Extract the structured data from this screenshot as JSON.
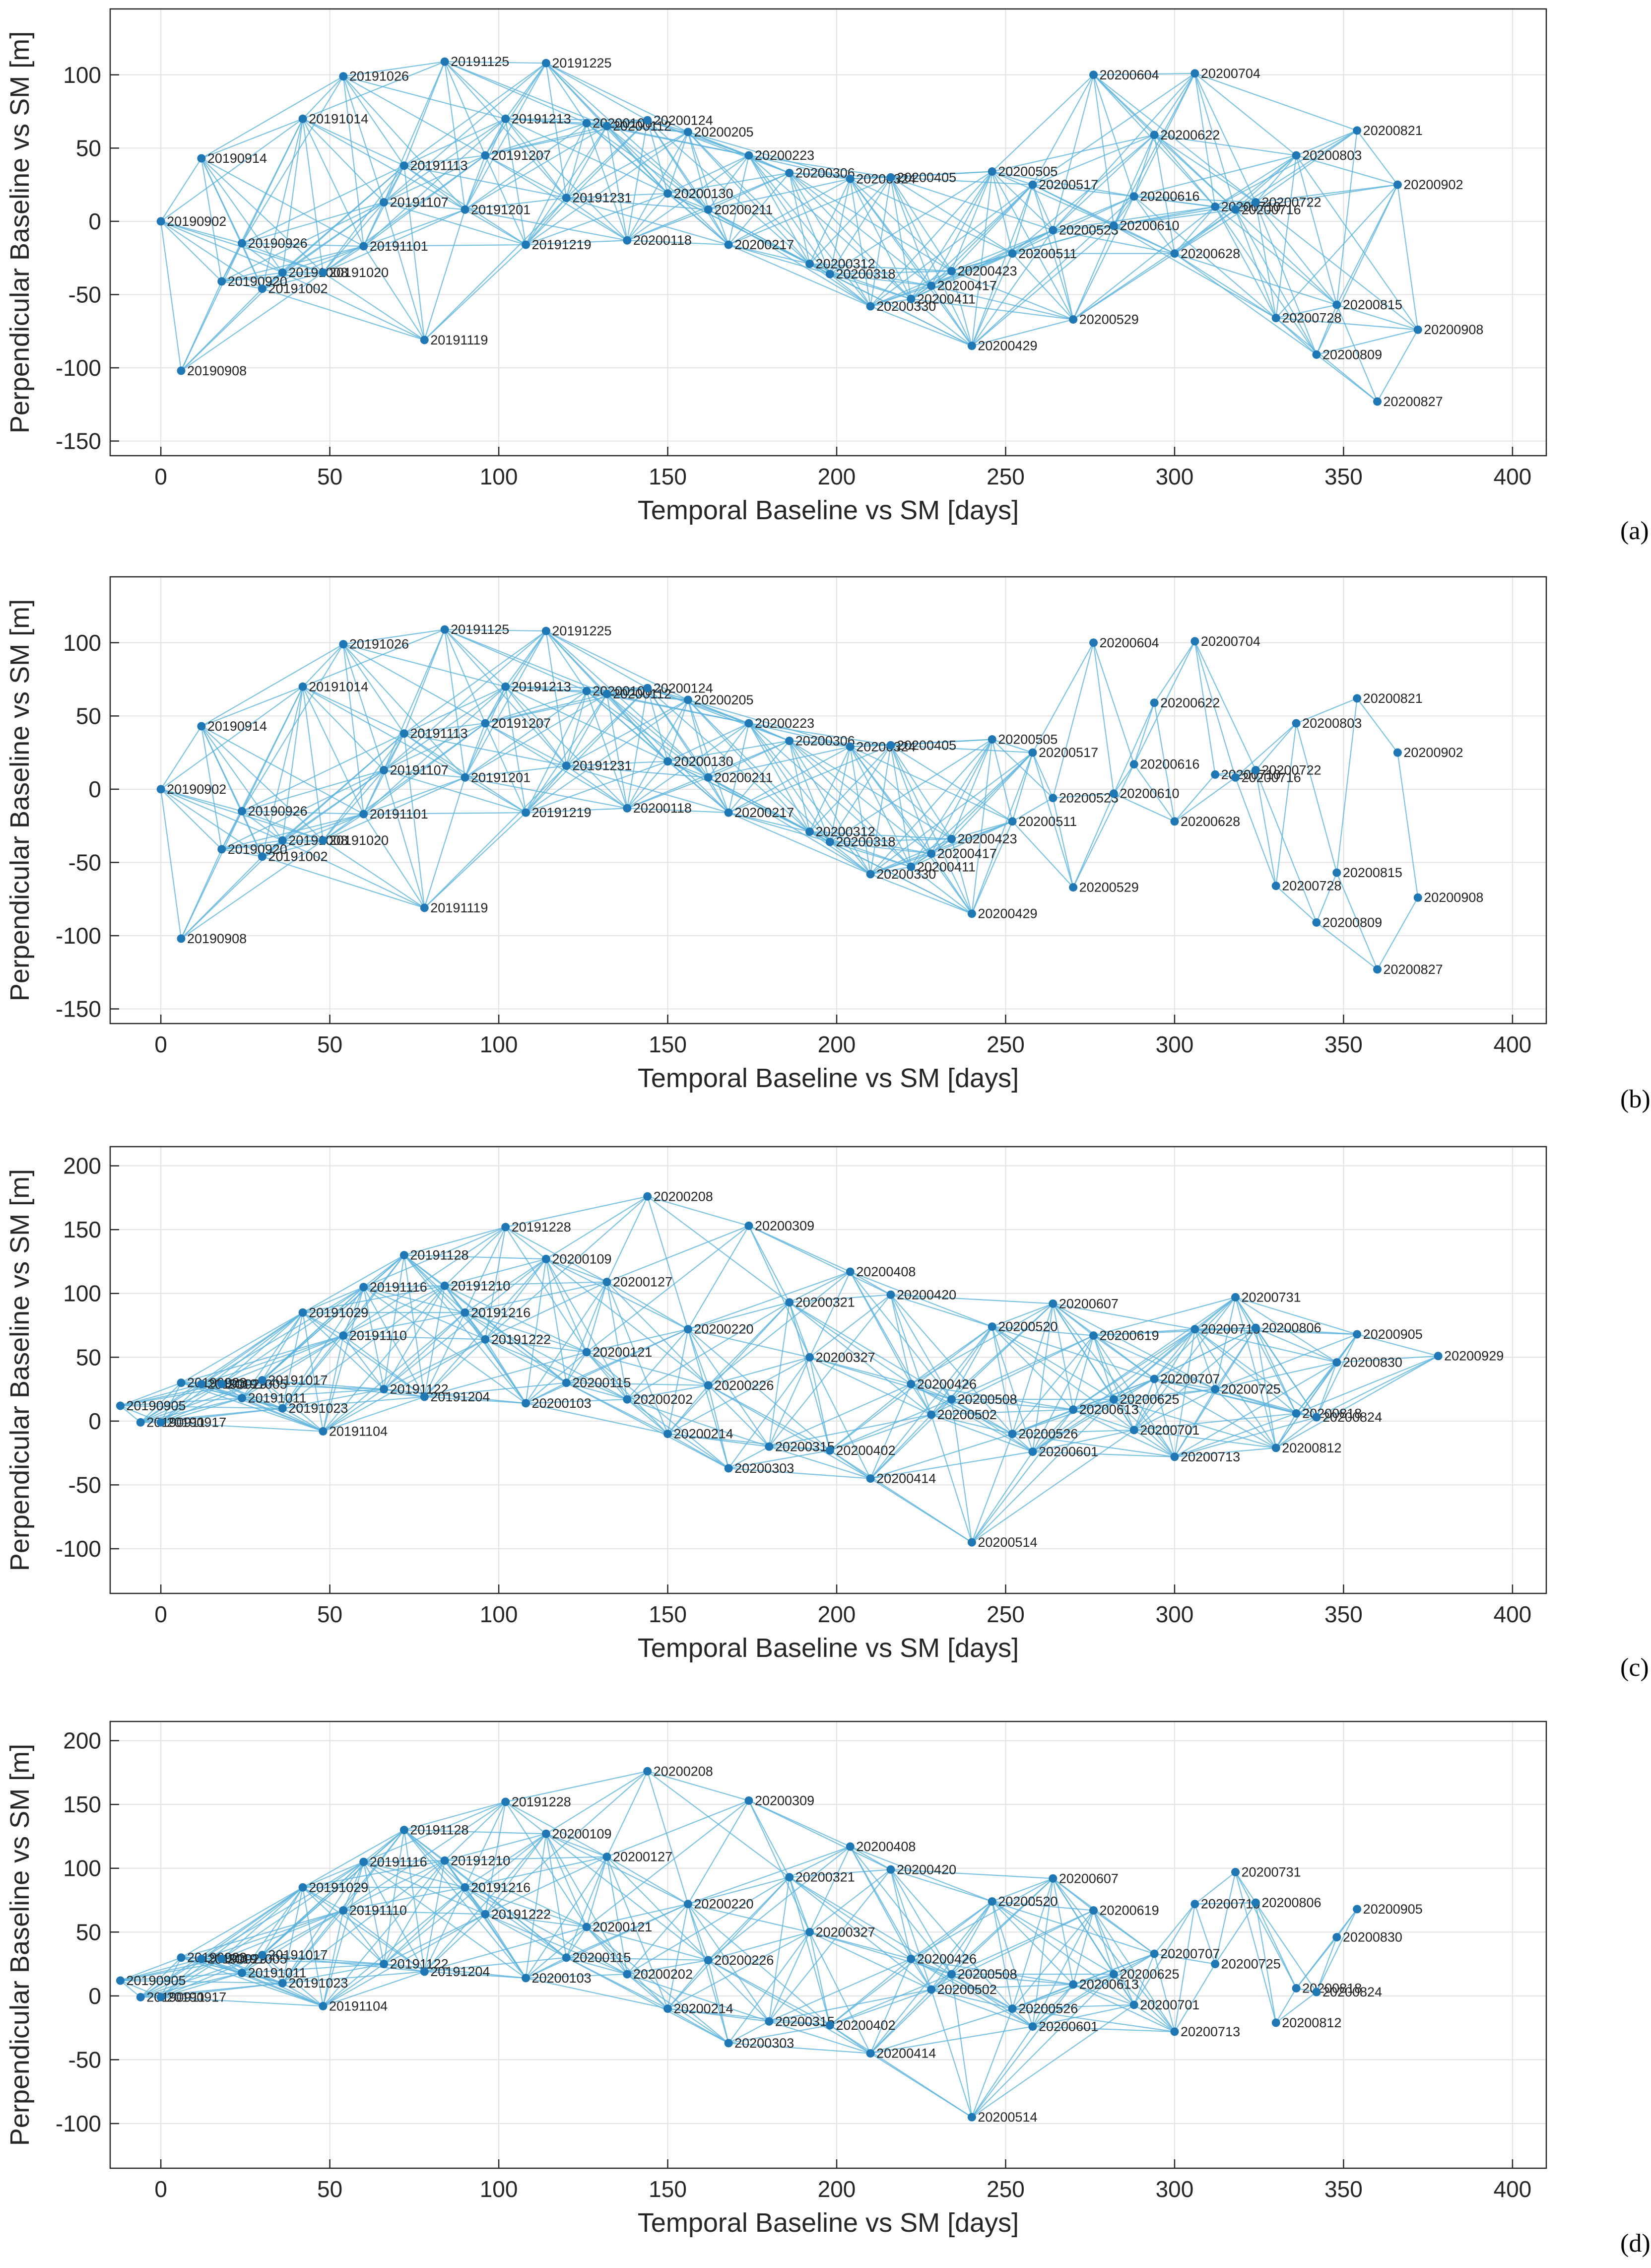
{
  "chart_data": [
    {
      "type": "scatter",
      "panel_label": "(a)",
      "xlabel": "Temporal Baseline vs SM [days]",
      "ylabel": "Perpendicular Baseline vs SM [m]",
      "xlim": [
        -15,
        410
      ],
      "ylim": [
        -160,
        145
      ],
      "xticks": [
        "0",
        "50",
        "100",
        "150",
        "200",
        "250",
        "300",
        "350",
        "400"
      ],
      "yticks": [
        "100",
        "50",
        "0",
        "-50",
        "-100",
        "-150"
      ],
      "grid": true,
      "points": [
        {
          "label": "20190902",
          "x": 0,
          "y": 0
        },
        {
          "label": "20190908",
          "x": 6,
          "y": -102
        },
        {
          "label": "20190914",
          "x": 12,
          "y": 43
        },
        {
          "label": "20190920",
          "x": 18,
          "y": -41
        },
        {
          "label": "20190926",
          "x": 24,
          "y": -15
        },
        {
          "label": "20191002",
          "x": 30,
          "y": -46
        },
        {
          "label": "20191008",
          "x": 36,
          "y": -35
        },
        {
          "label": "20191014",
          "x": 42,
          "y": 70
        },
        {
          "label": "20191020",
          "x": 48,
          "y": -35
        },
        {
          "label": "20191026",
          "x": 54,
          "y": 99
        },
        {
          "label": "20191101",
          "x": 60,
          "y": -17
        },
        {
          "label": "20191107",
          "x": 66,
          "y": 13
        },
        {
          "label": "20191113",
          "x": 72,
          "y": 38
        },
        {
          "label": "20191119",
          "x": 78,
          "y": -81
        },
        {
          "label": "20191125",
          "x": 84,
          "y": 109
        },
        {
          "label": "20191201",
          "x": 90,
          "y": 8
        },
        {
          "label": "20191207",
          "x": 96,
          "y": 45
        },
        {
          "label": "20191213",
          "x": 102,
          "y": 70
        },
        {
          "label": "20191219",
          "x": 108,
          "y": -16
        },
        {
          "label": "20191225",
          "x": 114,
          "y": 108
        },
        {
          "label": "20191231",
          "x": 120,
          "y": 16
        },
        {
          "label": "20200106",
          "x": 126,
          "y": 67
        },
        {
          "label": "20200112",
          "x": 132,
          "y": 65
        },
        {
          "label": "20200118",
          "x": 138,
          "y": -13
        },
        {
          "label": "20200124",
          "x": 144,
          "y": 69
        },
        {
          "label": "20200130",
          "x": 150,
          "y": 19
        },
        {
          "label": "20200205",
          "x": 156,
          "y": 61
        },
        {
          "label": "20200211",
          "x": 162,
          "y": 8
        },
        {
          "label": "20200217",
          "x": 168,
          "y": -16
        },
        {
          "label": "20200223",
          "x": 174,
          "y": 45
        },
        {
          "label": "20200306",
          "x": 186,
          "y": 33
        },
        {
          "label": "20200312",
          "x": 192,
          "y": -29
        },
        {
          "label": "20200318",
          "x": 198,
          "y": -36
        },
        {
          "label": "20200324",
          "x": 204,
          "y": 29
        },
        {
          "label": "20200330",
          "x": 210,
          "y": -58
        },
        {
          "label": "20200405",
          "x": 216,
          "y": 30
        },
        {
          "label": "20200411",
          "x": 222,
          "y": -53
        },
        {
          "label": "20200417",
          "x": 228,
          "y": -44
        },
        {
          "label": "20200423",
          "x": 234,
          "y": -34
        },
        {
          "label": "20200429",
          "x": 240,
          "y": -85
        },
        {
          "label": "20200505",
          "x": 246,
          "y": 34
        },
        {
          "label": "20200511",
          "x": 252,
          "y": -22
        },
        {
          "label": "20200517",
          "x": 258,
          "y": 25
        },
        {
          "label": "20200523",
          "x": 264,
          "y": -6
        },
        {
          "label": "20200529",
          "x": 270,
          "y": -67
        },
        {
          "label": "20200604",
          "x": 276,
          "y": 100
        },
        {
          "label": "20200610",
          "x": 282,
          "y": -3
        },
        {
          "label": "20200616",
          "x": 288,
          "y": 17
        },
        {
          "label": "20200622",
          "x": 294,
          "y": 59
        },
        {
          "label": "20200628",
          "x": 300,
          "y": -22
        },
        {
          "label": "20200704",
          "x": 306,
          "y": 101
        },
        {
          "label": "20200710",
          "x": 312,
          "y": 10
        },
        {
          "label": "20200716",
          "x": 318,
          "y": 8
        },
        {
          "label": "20200722",
          "x": 324,
          "y": 13
        },
        {
          "label": "20200728",
          "x": 330,
          "y": -66
        },
        {
          "label": "20200803",
          "x": 336,
          "y": 45
        },
        {
          "label": "20200809",
          "x": 342,
          "y": -91
        },
        {
          "label": "20200815",
          "x": 348,
          "y": -57
        },
        {
          "label": "20200821",
          "x": 354,
          "y": 62
        },
        {
          "label": "20200827",
          "x": 360,
          "y": -123
        },
        {
          "label": "20200902",
          "x": 366,
          "y": 25
        },
        {
          "label": "20200908",
          "x": 372,
          "y": -74
        }
      ]
    },
    {
      "type": "scatter",
      "panel_label": "(b)",
      "xlabel": "Temporal Baseline vs SM [days]",
      "ylabel": "Perpendicular Baseline vs SM [m]",
      "xlim": [
        -15,
        410
      ],
      "ylim": [
        -160,
        145
      ],
      "xticks": [
        "0",
        "50",
        "100",
        "150",
        "200",
        "250",
        "300",
        "350",
        "400"
      ],
      "yticks": [
        "100",
        "50",
        "0",
        "-50",
        "-100",
        "-150"
      ],
      "grid": true,
      "note_points": "same acquisitions as (a); fewer connections after day 260",
      "gap_after_x": 260
    },
    {
      "type": "scatter",
      "panel_label": "(c)",
      "xlabel": "Temporal Baseline vs SM [days]",
      "ylabel": "Perpendicular Baseline vs SM [m]",
      "xlim": [
        -15,
        410
      ],
      "ylim": [
        -135,
        215
      ],
      "xticks": [
        "0",
        "50",
        "100",
        "150",
        "200",
        "250",
        "300",
        "350",
        "400"
      ],
      "yticks": [
        "200",
        "150",
        "100",
        "50",
        "0",
        "-50",
        "-100"
      ],
      "grid": true,
      "points": [
        {
          "label": "20190905",
          "x": -12,
          "y": 12
        },
        {
          "label": "20190911",
          "x": -6,
          "y": -1
        },
        {
          "label": "20190917",
          "x": 0,
          "y": -1
        },
        {
          "label": "20190923",
          "x": 6,
          "y": 30
        },
        {
          "label": "20190929",
          "x": 12,
          "y": 29
        },
        {
          "label": "20191005",
          "x": 18,
          "y": 29
        },
        {
          "label": "20191011",
          "x": 24,
          "y": 18
        },
        {
          "label": "20191017",
          "x": 30,
          "y": 32
        },
        {
          "label": "20191023",
          "x": 36,
          "y": 10
        },
        {
          "label": "20191029",
          "x": 42,
          "y": 85
        },
        {
          "label": "20191104",
          "x": 48,
          "y": -8
        },
        {
          "label": "20191110",
          "x": 54,
          "y": 67
        },
        {
          "label": "20191116",
          "x": 60,
          "y": 105
        },
        {
          "label": "20191122",
          "x": 66,
          "y": 25
        },
        {
          "label": "20191128",
          "x": 72,
          "y": 130
        },
        {
          "label": "20191204",
          "x": 78,
          "y": 19
        },
        {
          "label": "20191210",
          "x": 84,
          "y": 106
        },
        {
          "label": "20191216",
          "x": 90,
          "y": 85
        },
        {
          "label": "20191222",
          "x": 96,
          "y": 64
        },
        {
          "label": "20191228",
          "x": 102,
          "y": 152
        },
        {
          "label": "20200103",
          "x": 108,
          "y": 14
        },
        {
          "label": "20200109",
          "x": 114,
          "y": 127
        },
        {
          "label": "20200115",
          "x": 120,
          "y": 30
        },
        {
          "label": "20200121",
          "x": 126,
          "y": 54
        },
        {
          "label": "20200127",
          "x": 132,
          "y": 109
        },
        {
          "label": "20200202",
          "x": 138,
          "y": 17
        },
        {
          "label": "20200208",
          "x": 144,
          "y": 176
        },
        {
          "label": "20200214",
          "x": 150,
          "y": -10
        },
        {
          "label": "20200220",
          "x": 156,
          "y": 72
        },
        {
          "label": "20200226",
          "x": 162,
          "y": 28
        },
        {
          "label": "20200303",
          "x": 168,
          "y": -37
        },
        {
          "label": "20200309",
          "x": 174,
          "y": 153
        },
        {
          "label": "20200315",
          "x": 180,
          "y": -20
        },
        {
          "label": "20200321",
          "x": 186,
          "y": 93
        },
        {
          "label": "20200327",
          "x": 192,
          "y": 50
        },
        {
          "label": "20200402",
          "x": 198,
          "y": -23
        },
        {
          "label": "20200408",
          "x": 204,
          "y": 117
        },
        {
          "label": "20200414",
          "x": 210,
          "y": -45
        },
        {
          "label": "20200420",
          "x": 216,
          "y": 99
        },
        {
          "label": "20200426",
          "x": 222,
          "y": 29
        },
        {
          "label": "20200502",
          "x": 228,
          "y": 5
        },
        {
          "label": "20200508",
          "x": 234,
          "y": 17
        },
        {
          "label": "20200514",
          "x": 240,
          "y": -95
        },
        {
          "label": "20200520",
          "x": 246,
          "y": 74
        },
        {
          "label": "20200526",
          "x": 252,
          "y": -10
        },
        {
          "label": "20200601",
          "x": 258,
          "y": -24
        },
        {
          "label": "20200607",
          "x": 264,
          "y": 92
        },
        {
          "label": "20200613",
          "x": 270,
          "y": 9
        },
        {
          "label": "20200619",
          "x": 276,
          "y": 67
        },
        {
          "label": "20200625",
          "x": 282,
          "y": 17
        },
        {
          "label": "20200701",
          "x": 288,
          "y": -7
        },
        {
          "label": "20200707",
          "x": 294,
          "y": 33
        },
        {
          "label": "20200713",
          "x": 300,
          "y": -28
        },
        {
          "label": "20200719",
          "x": 306,
          "y": 72
        },
        {
          "label": "20200725",
          "x": 312,
          "y": 25
        },
        {
          "label": "20200731",
          "x": 318,
          "y": 97
        },
        {
          "label": "20200806",
          "x": 324,
          "y": 73
        },
        {
          "label": "20200812",
          "x": 330,
          "y": -21
        },
        {
          "label": "20200818",
          "x": 336,
          "y": 6
        },
        {
          "label": "20200824",
          "x": 342,
          "y": 3
        },
        {
          "label": "20200830",
          "x": 348,
          "y": 46
        },
        {
          "label": "20200905",
          "x": 354,
          "y": 68
        },
        {
          "label": "20200929",
          "x": 378,
          "y": 51
        }
      ]
    },
    {
      "type": "scatter",
      "panel_label": "(d)",
      "xlabel": "Temporal Baseline vs SM [days]",
      "ylabel": "Perpendicular Baseline vs SM [m]",
      "xlim": [
        -15,
        410
      ],
      "ylim": [
        -135,
        215
      ],
      "xticks": [
        "0",
        "50",
        "100",
        "150",
        "200",
        "250",
        "300",
        "350",
        "400"
      ],
      "yticks": [
        "200",
        "150",
        "100",
        "50",
        "0",
        "-50",
        "-100"
      ],
      "grid": true,
      "note_points": "same acquisitions as (c) except 20200929; fewer connections after day 300",
      "exclude_labels": [
        "20200929"
      ],
      "gap_after_x": 300
    }
  ],
  "colors": {
    "point": "#1f77b4",
    "edge": "#5bb3dc",
    "grid": "#e3e3e3"
  }
}
